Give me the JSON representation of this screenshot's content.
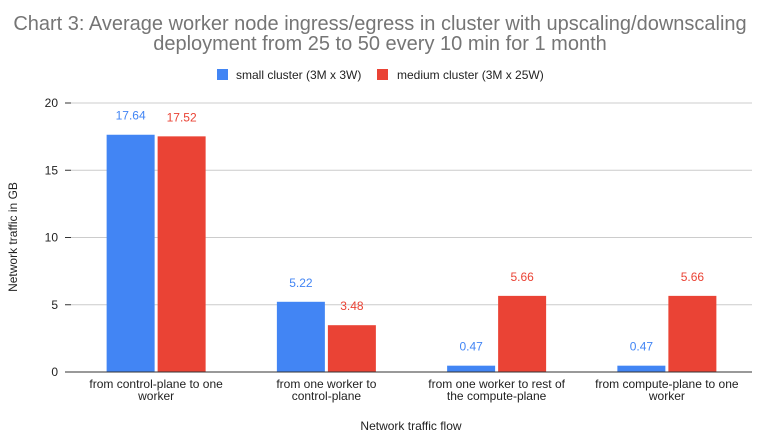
{
  "chart_data": {
    "type": "bar",
    "title": "Chart 3: Average worker node ingress/egress in cluster with upscaling/downscaling deployment from 25 to 50 every 10 min for 1 month",
    "title_lines": [
      "Chart 3: Average worker node ingress/egress in cluster with upscaling/downscaling",
      "deployment from 25 to 50 every 10 min for 1 month"
    ],
    "xlabel": "Network traffic flow",
    "ylabel": "Network traffic in GB",
    "ylim": [
      0,
      20
    ],
    "yticks": [
      0,
      5,
      10,
      15,
      20
    ],
    "grid": true,
    "legend_position": "top",
    "categories": [
      "from control-plane to one worker",
      "from one worker to control-plane",
      "from one worker to rest of the compute-plane",
      "from compute-plane to one worker"
    ],
    "category_lines": [
      [
        "from control-plane to one",
        "worker"
      ],
      [
        "from one worker to",
        "control-plane"
      ],
      [
        "from one worker to rest of",
        "the compute-plane"
      ],
      [
        "from compute-plane to one",
        "worker"
      ]
    ],
    "series": [
      {
        "name": "small cluster (3M x 3W)",
        "color": "#4285f4",
        "values": [
          17.64,
          5.22,
          0.47,
          0.47
        ]
      },
      {
        "name": "medium cluster (3M x 25W)",
        "color": "#ea4335",
        "values": [
          17.52,
          3.48,
          5.66,
          5.66
        ]
      }
    ]
  }
}
